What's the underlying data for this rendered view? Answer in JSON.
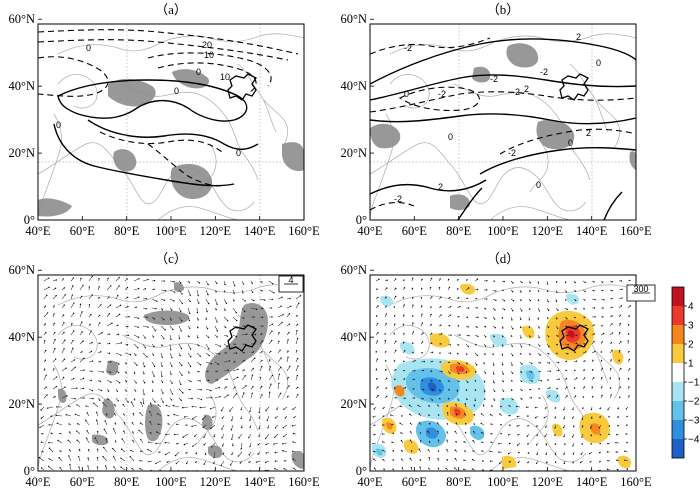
{
  "panels": [
    {
      "id": "a",
      "title": "（a）"
    },
    {
      "id": "b",
      "title": "（b）"
    },
    {
      "id": "c",
      "title": "（c）",
      "ref_vector": "4"
    },
    {
      "id": "d",
      "title": "（d）",
      "ref_vector": "300"
    }
  ],
  "x_ticks": [
    "40°E",
    "60°E",
    "80°E",
    "100°E",
    "120°E",
    "140°E",
    "160°E"
  ],
  "y_ticks": [
    "0°",
    "20°N",
    "40°N",
    "60°N"
  ],
  "contour_labels_a": [
    "20",
    "10",
    "10",
    "0",
    "0",
    "0",
    "0",
    "0"
  ],
  "contour_labels_b": [
    "-2",
    "2",
    "-2",
    "0",
    "-2",
    "2",
    "0",
    "0",
    "-2",
    "2",
    "-2",
    "0",
    "2",
    "-2",
    "0",
    "-2"
  ],
  "colorbar": {
    "ticks": [
      "4",
      "3",
      "2",
      "1",
      "−1",
      "−2",
      "−3",
      "−4"
    ],
    "colors": [
      "#c1121f",
      "#ec3a2a",
      "#f6861f",
      "#f9c93e",
      "#ffffff",
      "#a9e4f2",
      "#63c1ea",
      "#2f8fde",
      "#1f5fc8"
    ]
  },
  "colors": {
    "shade": "#8d8d8d",
    "coast": "#b4b4b4",
    "province": "#000000"
  }
}
